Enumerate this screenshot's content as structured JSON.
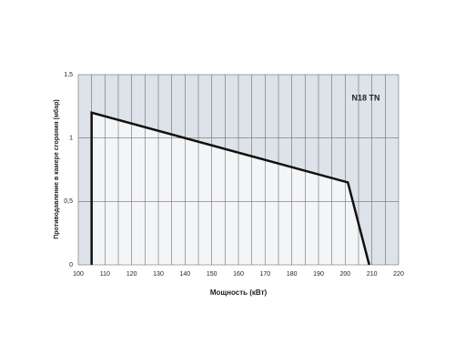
{
  "chart_data": {
    "type": "area",
    "annotation": "N18 TN",
    "x_label": "Мощность  (кВт)",
    "y_label": "Противодавление в камере сгорания (мбар)",
    "series": [
      {
        "x": [
          105,
          105,
          201,
          209
        ],
        "values": [
          0,
          1.2,
          0.65,
          0
        ],
        "color": "#111111",
        "fill": "#f3f5f7"
      }
    ],
    "plot_background": "#dde3e8",
    "grid": true,
    "xlim": [
      100,
      220
    ],
    "xticks": [
      100,
      110,
      120,
      130,
      140,
      150,
      160,
      170,
      180,
      190,
      200,
      210,
      220
    ],
    "xminorticks": [
      105,
      115,
      125,
      135,
      145,
      155,
      165,
      175,
      185,
      195,
      205,
      215
    ],
    "ylim": [
      0,
      1.5
    ],
    "yticks": [
      0,
      {
        "value": 0.5,
        "label": "0,5"
      },
      1,
      {
        "value": 1.5,
        "label": "1,5"
      }
    ]
  }
}
